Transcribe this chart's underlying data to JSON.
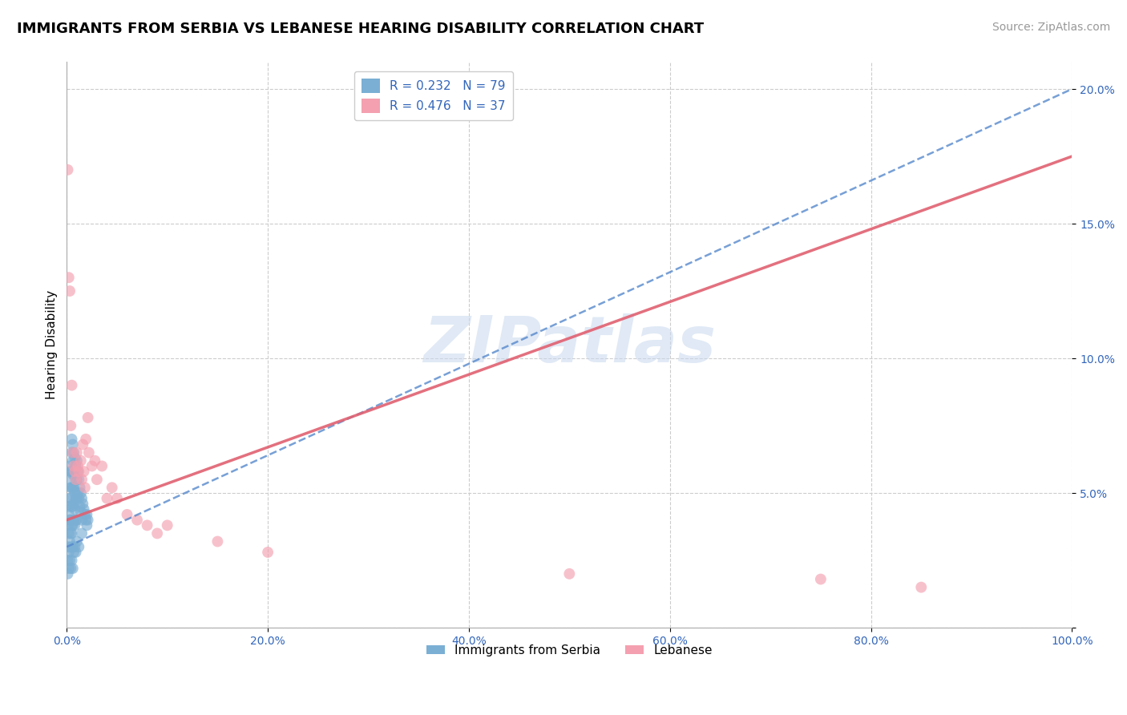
{
  "title": "IMMIGRANTS FROM SERBIA VS LEBANESE HEARING DISABILITY CORRELATION CHART",
  "source": "Source: ZipAtlas.com",
  "ylabel": "Hearing Disability",
  "watermark": "ZIPatlas",
  "xlim": [
    0.0,
    1.0
  ],
  "ylim": [
    0.0,
    0.21
  ],
  "xticks": [
    0.0,
    0.2,
    0.4,
    0.6,
    0.8,
    1.0
  ],
  "yticks": [
    0.0,
    0.05,
    0.1,
    0.15,
    0.2
  ],
  "xtick_labels": [
    "0.0%",
    "20.0%",
    "40.0%",
    "60.0%",
    "80.0%",
    "100.0%"
  ],
  "ytick_labels": [
    "",
    "5.0%",
    "10.0%",
    "15.0%",
    "20.0%"
  ],
  "serbia_R": 0.232,
  "serbia_N": 79,
  "lebanese_R": 0.476,
  "lebanese_N": 37,
  "serbia_color": "#7BAFD4",
  "lebanese_color": "#F4A0B0",
  "serbia_line_color": "#5588CC",
  "lebanese_line_color": "#E06070",
  "serbia_x": [
    0.001,
    0.001,
    0.002,
    0.002,
    0.002,
    0.003,
    0.003,
    0.003,
    0.003,
    0.004,
    0.004,
    0.004,
    0.004,
    0.004,
    0.005,
    0.005,
    0.005,
    0.005,
    0.005,
    0.005,
    0.006,
    0.006,
    0.006,
    0.006,
    0.006,
    0.006,
    0.007,
    0.007,
    0.007,
    0.007,
    0.007,
    0.008,
    0.008,
    0.008,
    0.008,
    0.008,
    0.009,
    0.009,
    0.009,
    0.009,
    0.01,
    0.01,
    0.01,
    0.01,
    0.011,
    0.011,
    0.012,
    0.012,
    0.013,
    0.013,
    0.014,
    0.014,
    0.015,
    0.015,
    0.016,
    0.017,
    0.018,
    0.019,
    0.02,
    0.021,
    0.001,
    0.001,
    0.002,
    0.002,
    0.003,
    0.003,
    0.004,
    0.004,
    0.005,
    0.005,
    0.006,
    0.006,
    0.007,
    0.008,
    0.009,
    0.01,
    0.012,
    0.015,
    0.02
  ],
  "serbia_y": [
    0.038,
    0.03,
    0.045,
    0.042,
    0.035,
    0.06,
    0.055,
    0.048,
    0.04,
    0.058,
    0.052,
    0.048,
    0.04,
    0.035,
    0.07,
    0.065,
    0.058,
    0.052,
    0.045,
    0.038,
    0.068,
    0.062,
    0.057,
    0.052,
    0.045,
    0.038,
    0.065,
    0.058,
    0.052,
    0.046,
    0.04,
    0.063,
    0.057,
    0.05,
    0.044,
    0.038,
    0.06,
    0.055,
    0.048,
    0.04,
    0.062,
    0.055,
    0.048,
    0.04,
    0.058,
    0.05,
    0.055,
    0.048,
    0.052,
    0.045,
    0.05,
    0.043,
    0.048,
    0.04,
    0.046,
    0.044,
    0.042,
    0.04,
    0.042,
    0.04,
    0.025,
    0.02,
    0.028,
    0.022,
    0.032,
    0.025,
    0.03,
    0.022,
    0.035,
    0.025,
    0.03,
    0.022,
    0.028,
    0.03,
    0.028,
    0.032,
    0.03,
    0.035,
    0.038
  ],
  "lebanese_x": [
    0.001,
    0.002,
    0.003,
    0.004,
    0.005,
    0.006,
    0.007,
    0.008,
    0.009,
    0.01,
    0.011,
    0.012,
    0.014,
    0.015,
    0.016,
    0.017,
    0.018,
    0.019,
    0.021,
    0.022,
    0.025,
    0.028,
    0.03,
    0.035,
    0.04,
    0.045,
    0.05,
    0.06,
    0.07,
    0.08,
    0.09,
    0.1,
    0.15,
    0.2,
    0.5,
    0.75,
    0.85
  ],
  "lebanese_y": [
    0.17,
    0.13,
    0.125,
    0.075,
    0.09,
    0.065,
    0.06,
    0.058,
    0.055,
    0.065,
    0.06,
    0.058,
    0.062,
    0.055,
    0.068,
    0.058,
    0.052,
    0.07,
    0.078,
    0.065,
    0.06,
    0.062,
    0.055,
    0.06,
    0.048,
    0.052,
    0.048,
    0.042,
    0.04,
    0.038,
    0.035,
    0.038,
    0.032,
    0.028,
    0.02,
    0.018,
    0.015
  ],
  "title_fontsize": 13,
  "axis_label_fontsize": 11,
  "tick_fontsize": 10,
  "legend_fontsize": 11,
  "source_fontsize": 10,
  "serbia_trend_x0": 0.0,
  "serbia_trend_y0": 0.03,
  "serbia_trend_x1": 1.0,
  "serbia_trend_y1": 0.2,
  "lebanese_trend_x0": 0.0,
  "lebanese_trend_y0": 0.04,
  "lebanese_trend_x1": 1.0,
  "lebanese_trend_y1": 0.175
}
